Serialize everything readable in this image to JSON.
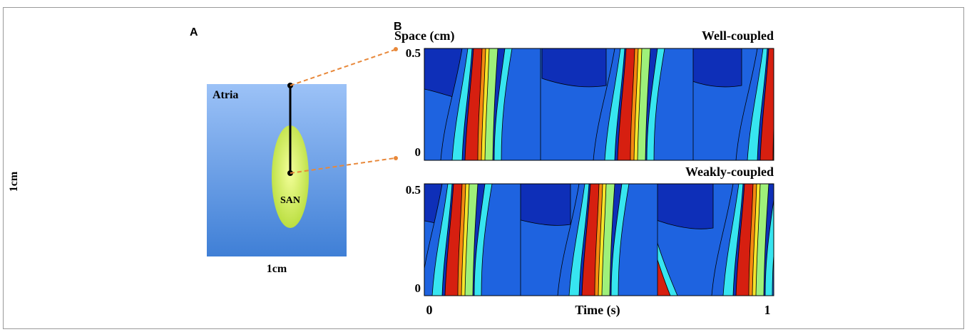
{
  "panel_a": {
    "label": "A",
    "region_label": "Atria",
    "node_label": "SAN",
    "height_label": "1cm",
    "width_label": "1cm"
  },
  "panel_b": {
    "label": "B",
    "y_axis_label": "Space (cm)",
    "x_axis_label": "Time (s)",
    "x_tick_start": "0",
    "x_tick_end": "1",
    "plots": [
      {
        "title": "Well-coupled",
        "y_tick_top": "0.5",
        "y_tick_bottom": "0"
      },
      {
        "title": "Weakly-coupled",
        "y_tick_top": "0.5",
        "y_tick_bottom": "0"
      }
    ]
  }
}
